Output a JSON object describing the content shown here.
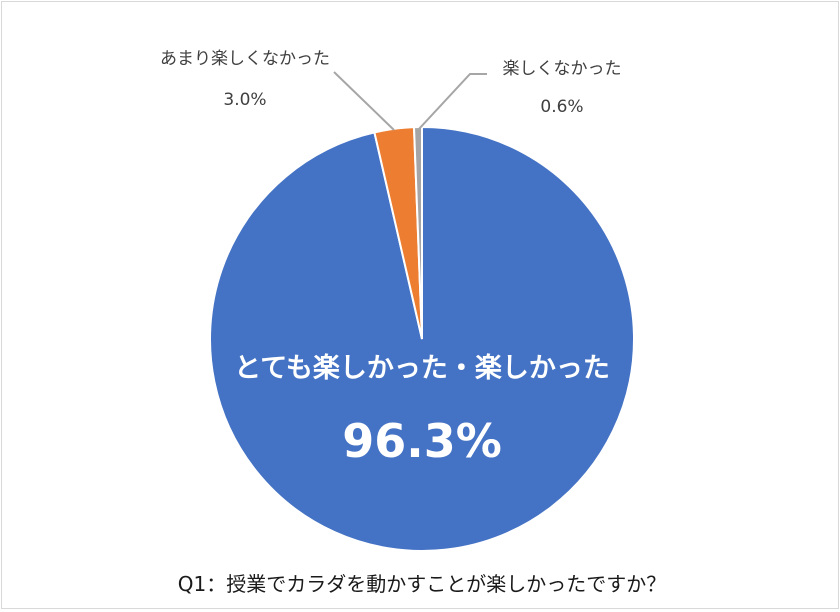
{
  "chart_data": {
    "type": "pie",
    "title": "Q1：授業でカラダを動かすことが楽しかったですか？",
    "slices": [
      {
        "label": "とても楽しかった・楽しかった",
        "value": 96.3,
        "display": "96.3%",
        "color": "#4472C4"
      },
      {
        "label": "あまり楽しくなかった",
        "value": 3.0,
        "display": "3.0%",
        "color": "#ED7D31"
      },
      {
        "label": "楽しくなかった",
        "value": 0.6,
        "display": "0.6%",
        "color": "#A5A5A5"
      }
    ],
    "legend": "none"
  }
}
